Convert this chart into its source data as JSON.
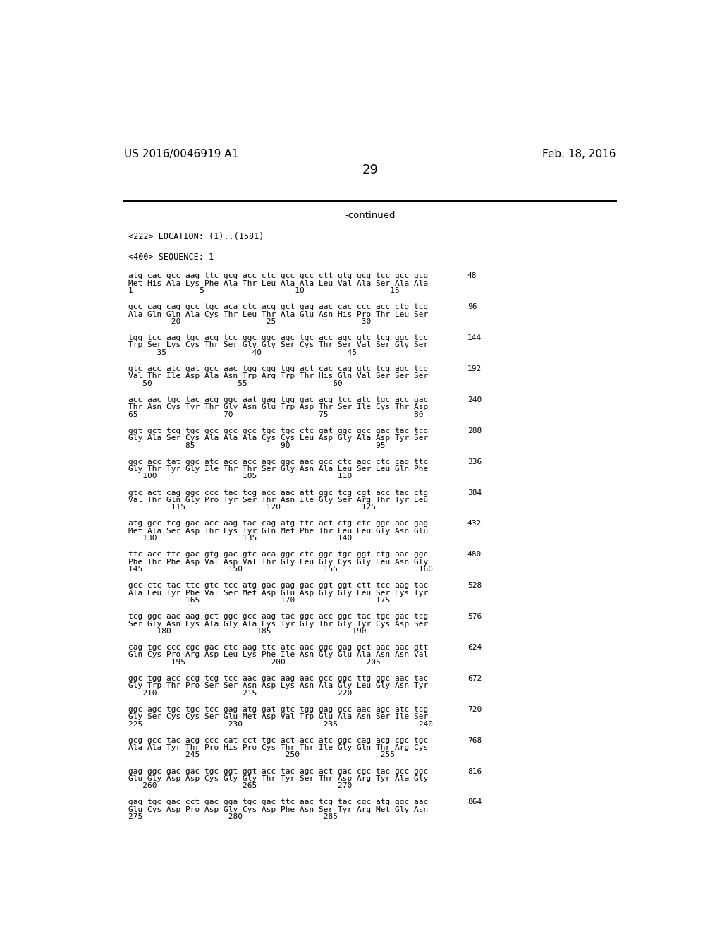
{
  "header_left": "US 2016/0046919 A1",
  "header_right": "Feb. 18, 2016",
  "page_number": "29",
  "continued": "-continued",
  "location_line": "<222> LOCATION: (1)..(1581)",
  "sequence_line": "<400> SEQUENCE: 1",
  "background_color": "#ffffff",
  "text_color": "#000000",
  "font_size_header": 11,
  "font_size_body": 8.5,
  "lines": [
    {
      "dna": "atg cac gcc aag ttc gcg acc ctc gcc gcc ctt gtg gcg tcc gcc gcg",
      "num": "48",
      "aa": "Met His Ala Lys Phe Ala Thr Leu Ala Ala Leu Val Ala Ser Ala Ala",
      "pos": "1              5                   10                  15"
    },
    {
      "dna": "gcc cag cag gcc tgc aca ctc acg gct gag aac cac ccc acc ctg tcg",
      "num": "96",
      "aa": "Ala Gln Gln Ala Cys Thr Leu Thr Ala Glu Asn His Pro Thr Leu Ser",
      "pos": "         20                  25                  30"
    },
    {
      "dna": "tgg tcc aag tgc acg tcc ggc ggc agc tgc acc agc gtc tcg ggc tcc",
      "num": "144",
      "aa": "Trp Ser Lys Cys Thr Ser Gly Gly Ser Cys Thr Ser Val Ser Gly Ser",
      "pos": "      35                  40                  45"
    },
    {
      "dna": "gtc acc atc gat gcc aac tgg cgg tgg act cac cag gtc tcg agc tcg",
      "num": "192",
      "aa": "Val Thr Ile Asp Ala Asn Trp Arg Trp Thr His Gln Val Ser Ser Ser",
      "pos": "   50                  55                  60"
    },
    {
      "dna": "acc aac tgc tac acg ggc aat gag tgg gac acg tcc atc tgc acc gac",
      "num": "240",
      "aa": "Thr Asn Cys Tyr Thr Gly Asn Glu Trp Asp Thr Ser Ile Cys Thr Asp",
      "pos": "65                  70                  75                  80"
    },
    {
      "dna": "ggt gct tcg tgc gcc gcc gcc tgc tgc ctc gat ggc gcc gac tac tcg",
      "num": "288",
      "aa": "Gly Ala Ser Cys Ala Ala Ala Cys Cys Leu Asp Gly Ala Asp Tyr Ser",
      "pos": "            85                  90                  95"
    },
    {
      "dna": "ggc acc tat ggc atc acc acc agc ggc aac gcc ctc agc ctc cag ttc",
      "num": "336",
      "aa": "Gly Thr Tyr Gly Ile Thr Thr Ser Gly Asn Ala Leu Ser Leu Gln Phe",
      "pos": "   100                  105                 110"
    },
    {
      "dna": "gtc act cag ggc ccc tac tcg acc aac att ggc tcg cgt acc tac ctg",
      "num": "384",
      "aa": "Val Thr Gln Gly Pro Tyr Ser Thr Asn Ile Gly Ser Arg Thr Tyr Leu",
      "pos": "         115                 120                 125"
    },
    {
      "dna": "atg gcc tcg gac acc aag tac cag atg ttc act ctg ctc ggc aac gag",
      "num": "432",
      "aa": "Met Ala Ser Asp Thr Lys Tyr Gln Met Phe Thr Leu Leu Gly Asn Glu",
      "pos": "   130                  135                 140"
    },
    {
      "dna": "ttc acc ttc gac gtg gac gtc aca ggc ctc ggc tgc ggt ctg aac ggc",
      "num": "480",
      "aa": "Phe Thr Phe Asp Val Asp Val Thr Gly Leu Gly Cys Gly Leu Asn Gly",
      "pos": "145                  150                 155                 160"
    },
    {
      "dna": "gcc ctc tac ttc gtc tcc atg gac gag gac ggt ggt ctt tcc aag tac",
      "num": "528",
      "aa": "Ala Leu Tyr Phe Val Ser Met Asp Glu Asp Gly Gly Leu Ser Lys Tyr",
      "pos": "            165                 170                 175"
    },
    {
      "dna": "tcg ggc aac aag gct ggc gcc aag tac ggc acc ggc tac tgc gac tcg",
      "num": "576",
      "aa": "Ser Gly Asn Lys Ala Gly Ala Lys Tyr Gly Thr Gly Tyr Cys Asp Ser",
      "pos": "      180                  185                 190"
    },
    {
      "dna": "cag tgc ccc cgc gac ctc aag ttc atc aac ggc gag gct aac aac gtt",
      "num": "624",
      "aa": "Gln Cys Pro Arg Asp Leu Lys Phe Ile Asn Gly Glu Ala Asn Asn Val",
      "pos": "         195                  200                 205"
    },
    {
      "dna": "ggc tgg acc ccg tcg tcc aac gac aag aac gcc ggc ttg ggc aac tac",
      "num": "672",
      "aa": "Gly Trp Thr Pro Ser Ser Asn Asp Lys Asn Ala Gly Leu Gly Asn Tyr",
      "pos": "   210                  215                 220"
    },
    {
      "dna": "ggc agc tgc tgc tcc gag atg gat gtc tgg gag gcc aac agc atc tcg",
      "num": "720",
      "aa": "Gly Ser Cys Cys Ser Glu Met Asp Val Trp Glu Ala Asn Ser Ile Ser",
      "pos": "225                  230                 235                 240"
    },
    {
      "dna": "gcg gcc tac acg ccc cat cct tgc act acc atc ggc cag acg cgc tgc",
      "num": "768",
      "aa": "Ala Ala Tyr Thr Pro His Pro Cys Thr Thr Ile Gly Gln Thr Arg Cys",
      "pos": "            245                  250                 255"
    },
    {
      "dna": "gag ggc gac gac tgc ggt ggt acc tac agc act gac cgc tac gcc ggc",
      "num": "816",
      "aa": "Glu Gly Asp Asp Cys Gly Gly Thr Tyr Ser Thr Asp Arg Tyr Ala Gly",
      "pos": "   260                  265                 270"
    },
    {
      "dna": "gag tgc gac cct gac gga tgc gac ttc aac tcg tac cgc atg ggc aac",
      "num": "864",
      "aa": "Glu Cys Asp Pro Asp Gly Cys Asp Phe Asn Ser Tyr Arg Met Gly Asn",
      "pos": "275                  280                 285"
    }
  ]
}
